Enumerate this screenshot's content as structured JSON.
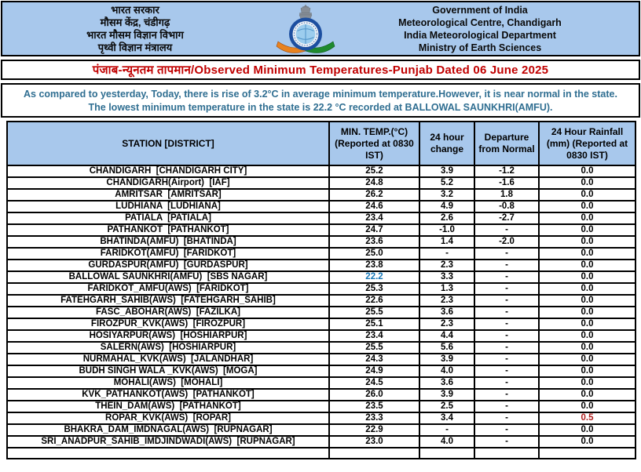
{
  "header": {
    "background_color": "#a8c8ec",
    "hindi_lines": [
      "भारत सरकार",
      "मौसम केंद्र, चंडीगढ़",
      "भारत मौसम विज्ञान विभाग",
      "पृथ्वी विज्ञान मंत्रालय"
    ],
    "english_lines": [
      "Government of India",
      "Meteorological Centre, Chandigarh",
      "India Meteorological Department",
      "Ministry of Earth Sciences"
    ],
    "logo_name": "imd-emblem"
  },
  "title": {
    "text": "पंजाब-न्यूनतम तापमान/Observed Minimum Temperatures-Punjab Dated 06 June 2025",
    "color": "#c00000"
  },
  "note": {
    "line1": "As compared to yesterday, Today, there is rise of 3.2°C in average minimum temperature.However, it is near normal in the state.",
    "line2": "The lowest minimum temperature in the state is 22.2 °C recorded at BALLOWAL SAUNKHRI(AMFU).",
    "color": "#2f6e91"
  },
  "table": {
    "columns": [
      "STATION [DISTRICT]",
      "MIN. TEMP.(°C) (Reported at 0830 IST)",
      "24 hour change",
      "Departure from Normal",
      "24 Hour Rainfall (mm) (Reported at 0830 IST)"
    ],
    "highlight_colors": {
      "lowest_min_temp": "#1878b8",
      "rainfall_alert": "#b02020"
    },
    "rows": [
      {
        "station": "CHANDIGARH  [CHANDIGARH CITY]",
        "min_temp": "25.2",
        "change_24h": "3.9",
        "departure": "-1.2",
        "rainfall": "0.0"
      },
      {
        "station": "CHANDIGARH(Airport)  [IAF]",
        "min_temp": "24.8",
        "change_24h": "5.2",
        "departure": "-1.6",
        "rainfall": "0.0"
      },
      {
        "station": "AMRITSAR  [AMRITSAR]",
        "min_temp": "26.2",
        "change_24h": "3.2",
        "departure": "1.8",
        "rainfall": "0.0"
      },
      {
        "station": "LUDHIANA  [LUDHIANA]",
        "min_temp": "24.6",
        "change_24h": "4.9",
        "departure": "-0.8",
        "rainfall": "0.0"
      },
      {
        "station": "PATIALA  [PATIALA]",
        "min_temp": "23.4",
        "change_24h": "2.6",
        "departure": "-2.7",
        "rainfall": "0.0"
      },
      {
        "station": "PATHANKOT  [PATHANKOT]",
        "min_temp": "24.7",
        "change_24h": "-1.0",
        "departure": "-",
        "rainfall": "0.0"
      },
      {
        "station": "BHATINDA(AMFU)  [BHATINDA]",
        "min_temp": "23.6",
        "change_24h": "1.4",
        "departure": "-2.0",
        "rainfall": "0.0"
      },
      {
        "station": "FARIDKOT(AMFU)  [FARIDKOT]",
        "min_temp": "25.0",
        "change_24h": "-",
        "departure": "-",
        "rainfall": "0.0"
      },
      {
        "station": "GURDASPUR(AMFU)  [GURDASPUR]",
        "min_temp": "23.8",
        "change_24h": "2.3",
        "departure": "-",
        "rainfall": "0.0"
      },
      {
        "station": "BALLOWAL SAUNKHRI(AMFU)  [SBS NAGAR]",
        "min_temp": "22.2",
        "change_24h": "3.3",
        "departure": "-",
        "rainfall": "0.0",
        "highlight": "min_temp"
      },
      {
        "station": "FARIDKOT_AMFU(AWS)  [FARIDKOT]",
        "min_temp": "25.3",
        "change_24h": "1.3",
        "departure": "-",
        "rainfall": "0.0"
      },
      {
        "station": "FATEHGARH_SAHIB(AWS)  [FATEHGARH_SAHIB]",
        "min_temp": "22.6",
        "change_24h": "2.3",
        "departure": "-",
        "rainfall": "0.0"
      },
      {
        "station": "FASC_ABOHAR(AWS)  [FAZILKA]",
        "min_temp": "25.5",
        "change_24h": "3.6",
        "departure": "-",
        "rainfall": "0.0"
      },
      {
        "station": "FIROZPUR_KVK(AWS)  [FIROZPUR]",
        "min_temp": "25.1",
        "change_24h": "2.3",
        "departure": "-",
        "rainfall": "0.0"
      },
      {
        "station": "HOSIYARPUR(AWS)  [HOSHIARPUR]",
        "min_temp": "23.4",
        "change_24h": "4.4",
        "departure": "-",
        "rainfall": "0.0"
      },
      {
        "station": "SALERN(AWS)  [HOSHIARPUR]",
        "min_temp": "25.5",
        "change_24h": "5.6",
        "departure": "-",
        "rainfall": "0.0"
      },
      {
        "station": "NURMAHAL_KVK(AWS)  [JALANDHAR]",
        "min_temp": "24.3",
        "change_24h": "3.9",
        "departure": "-",
        "rainfall": "0.0"
      },
      {
        "station": "BUDH SINGH WALA _KVK(AWS)  [MOGA]",
        "min_temp": "24.9",
        "change_24h": "4.0",
        "departure": "-",
        "rainfall": "0.0"
      },
      {
        "station": "MOHALI(AWS)  [MOHALI]",
        "min_temp": "24.5",
        "change_24h": "3.6",
        "departure": "-",
        "rainfall": "0.0"
      },
      {
        "station": "KVK_PATHANKOT(AWS)  [PATHANKOT]",
        "min_temp": "26.0",
        "change_24h": "3.9",
        "departure": "-",
        "rainfall": "0.0"
      },
      {
        "station": "THEIN_DAM(AWS)  [PATHANKOT]",
        "min_temp": "23.5",
        "change_24h": "2.5",
        "departure": "-",
        "rainfall": "0.0"
      },
      {
        "station": "ROPAR_KVK(AWS)  [ROPAR]",
        "min_temp": "23.3",
        "change_24h": "3.4",
        "departure": "-",
        "rainfall": "0.5",
        "highlight": "rainfall"
      },
      {
        "station": "BHAKRA_DAM_IMDNAGAL(AWS)  [RUPNAGAR]",
        "min_temp": "22.9",
        "change_24h": "-",
        "departure": "-",
        "rainfall": "0.0"
      },
      {
        "station": "SRI_ANADPUR_SAHIB_IMDJINDWADI(AWS)  [RUPNAGAR]",
        "min_temp": "23.0",
        "change_24h": "4.0",
        "departure": "-",
        "rainfall": "0.0"
      }
    ]
  }
}
